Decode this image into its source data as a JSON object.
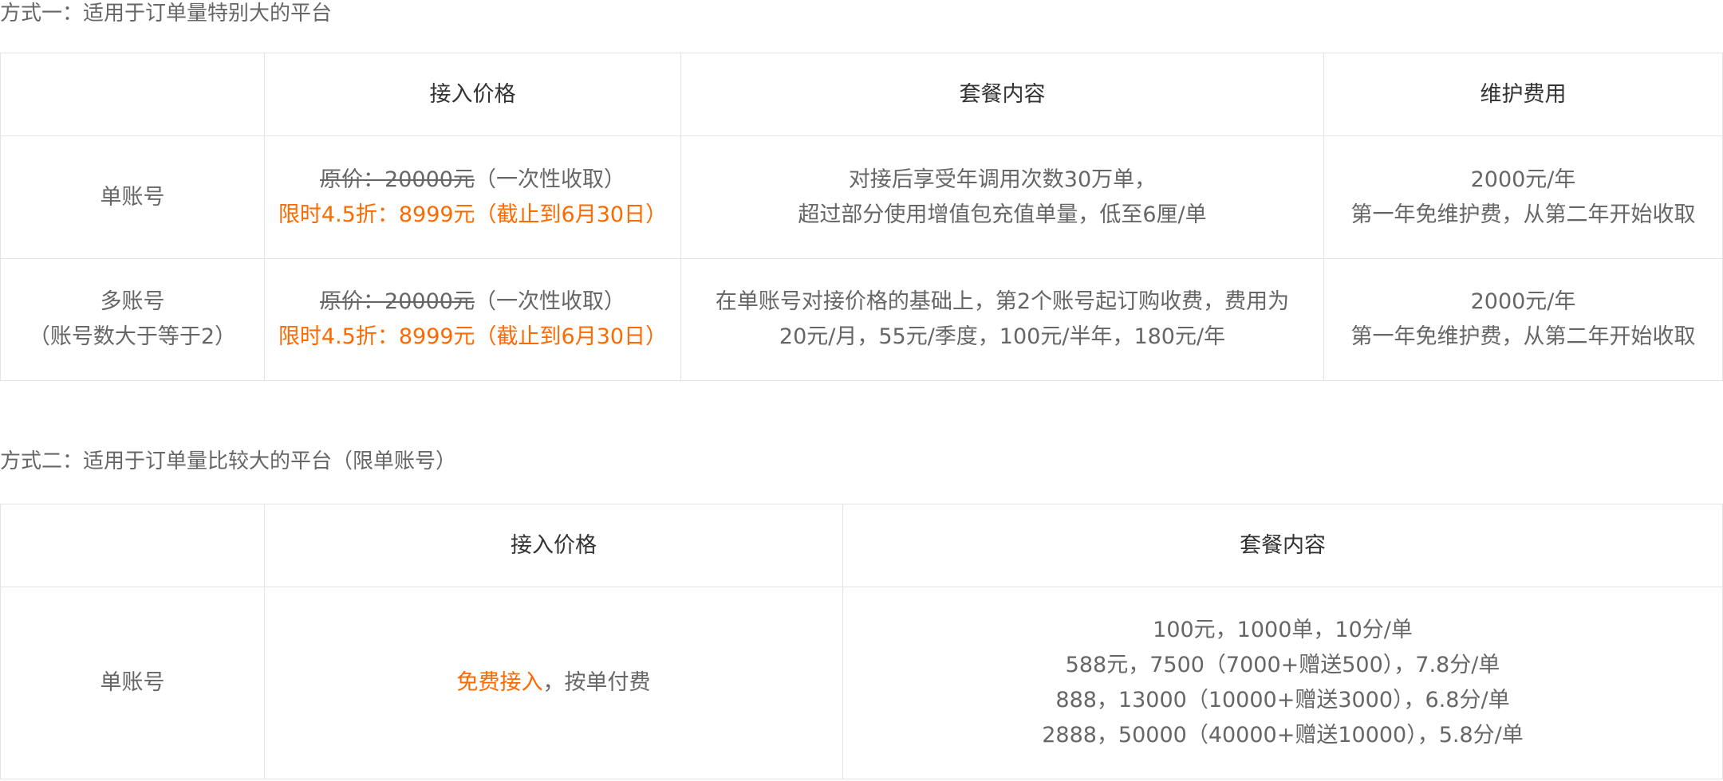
{
  "section1": {
    "title": "方式一：适用于订单量特别大的平台",
    "headers": [
      "接入价格",
      "套餐内容",
      "维护费用"
    ],
    "rows": [
      {
        "label": [
          "单账号"
        ],
        "price": {
          "original": "原价：20000元",
          "note": "（一次性收取）",
          "promo": "限时4.5折：8999元（截止到6月30日）"
        },
        "content": [
          "对接后享受年调用次数30万单，",
          "超过部分使用增值包充值单量，低至6厘/单"
        ],
        "maintenance": [
          "2000元/年",
          "第一年免维护费，从第二年开始收取"
        ]
      },
      {
        "label": [
          "多账号",
          "（账号数大于等于2）"
        ],
        "price": {
          "original": "原价：20000元",
          "note": "（一次性收取）",
          "promo": "限时4.5折：8999元（截止到6月30日）"
        },
        "content": [
          "在单账号对接价格的基础上，第2个账号起订购收费，费用为",
          "20元/月，55元/季度，100元/半年，180元/年"
        ],
        "maintenance": [
          "2000元/年",
          "第一年免维护费，从第二年开始收取"
        ]
      }
    ]
  },
  "section2": {
    "title": "方式二：适用于订单量比较大的平台（限单账号）",
    "headers": [
      "接入价格",
      "套餐内容"
    ],
    "rows": [
      {
        "label": [
          "单账号"
        ],
        "price": {
          "highlight": "免费接入",
          "rest": "，按单付费"
        },
        "content": [
          "100元，1000单，10分/单",
          "588元，7500（7000+赠送500），7.8分/单",
          "888，13000（10000+赠送3000），6.8分/单",
          "2888，50000（40000+赠送10000），5.8分/单"
        ]
      }
    ]
  }
}
